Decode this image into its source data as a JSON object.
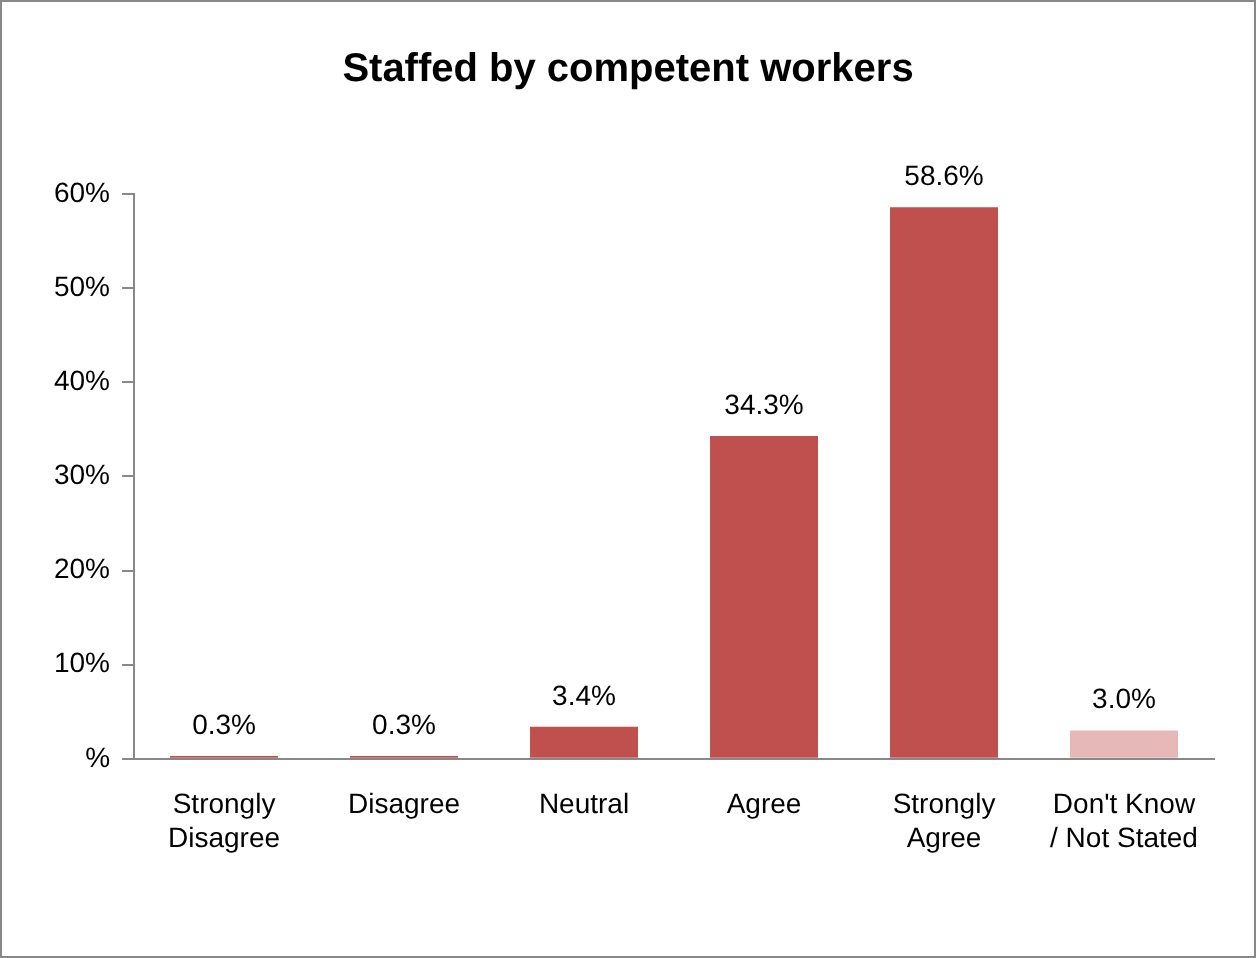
{
  "chart_data": {
    "type": "bar",
    "title": "Staffed by competent workers",
    "categories": [
      "Strongly Disagree",
      "Disagree",
      "Neutral",
      "Agree",
      "Strongly Agree",
      "Don't Know / Not Stated"
    ],
    "values": [
      0.3,
      0.3,
      3.4,
      34.3,
      58.6,
      3.0
    ],
    "colors": [
      "#c0504d",
      "#c0504d",
      "#c0504d",
      "#c0504d",
      "#c0504d",
      "#e6b9b8"
    ],
    "value_labels": [
      "0.3%",
      "0.3%",
      "3.4%",
      "34.3%",
      "58.6%",
      "3.0%"
    ],
    "ylim": [
      0,
      60
    ],
    "yticks": [
      {
        "value": 0,
        "label": "%"
      },
      {
        "value": 10,
        "label": "10%"
      },
      {
        "value": 20,
        "label": "20%"
      },
      {
        "value": 30,
        "label": "30%"
      },
      {
        "value": 40,
        "label": "40%"
      },
      {
        "value": 50,
        "label": "50%"
      },
      {
        "value": 60,
        "label": "60%"
      }
    ],
    "grid": false,
    "legend": false
  }
}
